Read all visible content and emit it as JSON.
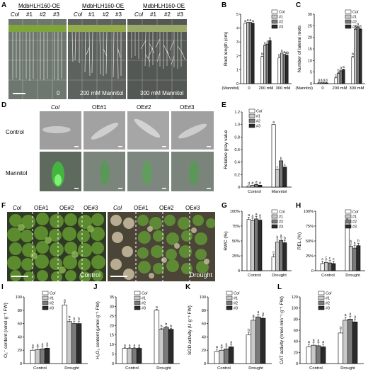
{
  "colors": {
    "col": "#ffffff",
    "oe1": "#c8c8c8",
    "oe2": "#7a7a7a",
    "oe3": "#2a2a2a"
  },
  "panel_letters": [
    "A",
    "B",
    "C",
    "D",
    "E",
    "F",
    "G",
    "H",
    "I",
    "J",
    "K",
    "L"
  ],
  "panelA": {
    "headers": [
      "MdbHLH160-OE",
      "MdbHLH160-OE",
      "MdbHLH160-OE"
    ],
    "lines": [
      "Col",
      "#1",
      "#2",
      "#3"
    ],
    "treatments": [
      "0",
      "200 mM Mannitol",
      "300 mM Mannitol"
    ]
  },
  "panelD": {
    "cols": [
      "Col",
      "OE#1",
      "OE#2",
      "OE#3"
    ],
    "rows": [
      "Control",
      "Mannitol"
    ]
  },
  "panelF": {
    "labels_left": [
      "Col",
      "OE#1",
      "OE#2",
      "OE#3"
    ],
    "labels_right": [
      "Col",
      "OE#1",
      "OE#2",
      "OE#3"
    ],
    "conditions": [
      "Control",
      "Drought"
    ]
  },
  "chart_data": [
    {
      "id": "B",
      "type": "bar",
      "ylabel": "Root length (cm)",
      "ylim": [
        0,
        5
      ],
      "yticks": [
        "0",
        "1",
        "2",
        "3",
        "4",
        "5"
      ],
      "xprefix": "(Mannitol)",
      "categories": [
        "0",
        "200 mM",
        "300 mM"
      ],
      "legend": [
        "Col",
        "#1",
        "#2",
        "#3"
      ],
      "series": [
        {
          "name": "Col",
          "values": [
            4.35,
            1.95,
            1.85
          ]
        },
        {
          "name": "#1",
          "values": [
            4.4,
            2.75,
            2.2
          ]
        },
        {
          "name": "#2",
          "values": [
            4.4,
            2.85,
            2.1
          ]
        },
        {
          "name": "#3",
          "values": [
            4.35,
            3.1,
            2.05
          ]
        }
      ],
      "letters": [
        [
          "a",
          "a",
          "a",
          "a"
        ],
        [
          "b",
          "a",
          "a",
          "a"
        ],
        [
          "b",
          "a",
          "a",
          "ab"
        ]
      ]
    },
    {
      "id": "C",
      "type": "bar",
      "ylabel": "Number of lateral roots",
      "ylim": [
        0,
        30
      ],
      "yticks": [
        "0",
        "5",
        "10",
        "15",
        "20",
        "25",
        "30"
      ],
      "xprefix": "(Mannitol)",
      "categories": [
        "0",
        "200 mM",
        "300 mM"
      ],
      "legend": [
        "Col",
        "#1",
        "#2",
        "#3"
      ],
      "series": [
        {
          "name": "Col",
          "values": [
            0.3,
            2.5,
            11.5
          ]
        },
        {
          "name": "#1",
          "values": [
            0.3,
            4.5,
            23.5
          ]
        },
        {
          "name": "#2",
          "values": [
            0.3,
            5.5,
            24.5
          ]
        },
        {
          "name": "#3",
          "values": [
            0.3,
            6,
            23.5
          ]
        }
      ],
      "letters": [
        [
          "a",
          "a",
          "a",
          "a"
        ],
        [
          "c",
          "b",
          "a",
          "a"
        ],
        [
          "b",
          "a",
          "a",
          "a"
        ]
      ]
    },
    {
      "id": "E",
      "type": "bar",
      "ylabel": "Relative gray value",
      "ylim": [
        0,
        1.2
      ],
      "yticks": [
        "0",
        "0.2",
        "0.4",
        "0.6",
        "0.8",
        "1.0",
        "1.2"
      ],
      "xprefix": "",
      "categories": [
        "Control",
        "Mannitol"
      ],
      "legend": [
        "Col",
        "#1",
        "#2",
        "#3"
      ],
      "series": [
        {
          "name": "Col",
          "values": [
            0.02,
            1.0
          ]
        },
        {
          "name": "#1",
          "values": [
            0.03,
            0.28
          ]
        },
        {
          "name": "#2",
          "values": [
            0.04,
            0.42
          ]
        },
        {
          "name": "#3",
          "values": [
            0.03,
            0.32
          ]
        }
      ],
      "letters": [
        [
          "d",
          "d",
          "d",
          "d"
        ],
        [
          "a",
          "c",
          "b",
          "c"
        ]
      ]
    },
    {
      "id": "G",
      "type": "bar",
      "ylabel": "RWC (%)",
      "ylim": [
        0,
        100
      ],
      "yticks": [
        "0",
        "25%",
        "50%",
        "75%",
        "100%"
      ],
      "xprefix": "",
      "categories": [
        "Control",
        "Drought"
      ],
      "legend": [
        "Col",
        "#1",
        "#2",
        "#3"
      ],
      "series": [
        {
          "name": "Col",
          "values": [
            86,
            23
          ]
        },
        {
          "name": "#1",
          "values": [
            84,
            48
          ]
        },
        {
          "name": "#2",
          "values": [
            87,
            51
          ]
        },
        {
          "name": "#3",
          "values": [
            85,
            47
          ]
        }
      ],
      "letters": [
        [
          "a",
          "a",
          "a",
          "a"
        ],
        [
          "c",
          "b",
          "a",
          "b"
        ]
      ]
    },
    {
      "id": "H",
      "type": "bar",
      "ylabel": "REL (%)",
      "ylim": [
        0,
        100
      ],
      "yticks": [
        "0",
        "25%",
        "50%",
        "75%",
        "100%"
      ],
      "xprefix": "",
      "categories": [
        "Control",
        "Drought"
      ],
      "legend": [
        "Col",
        "#1",
        "#2",
        "#3"
      ],
      "series": [
        {
          "name": "Col",
          "values": [
            12,
            80
          ]
        },
        {
          "name": "#1",
          "values": [
            14,
            41
          ]
        },
        {
          "name": "#2",
          "values": [
            13,
            38
          ]
        },
        {
          "name": "#3",
          "values": [
            12,
            42
          ]
        }
      ],
      "letters": [
        [
          "c",
          "c",
          "c",
          "c"
        ],
        [
          "a",
          "b",
          "b",
          "b"
        ]
      ]
    },
    {
      "id": "I",
      "type": "bar",
      "ylabel": "O₂⁻ content (nmol·g⁻¹ FW)",
      "ylim": [
        0,
        100
      ],
      "yticks": [
        "0",
        "20",
        "40",
        "60",
        "80",
        "100"
      ],
      "xprefix": "",
      "categories": [
        "Control",
        "Drought"
      ],
      "legend": [
        "Col",
        "#1",
        "#2",
        "#3"
      ],
      "series": [
        {
          "name": "Col",
          "values": [
            20,
            88
          ]
        },
        {
          "name": "#1",
          "values": [
            21,
            63
          ]
        },
        {
          "name": "#2",
          "values": [
            22,
            60
          ]
        },
        {
          "name": "#3",
          "values": [
            23,
            60
          ]
        }
      ],
      "letters": [
        [
          "a",
          "a",
          "a",
          "a"
        ],
        [
          "a",
          "b",
          "b",
          "b"
        ]
      ]
    },
    {
      "id": "J",
      "type": "bar",
      "ylabel": "H₂O₂ content (μmol·g⁻¹ FW)",
      "ylim": [
        0,
        35
      ],
      "yticks": [
        "0",
        "5",
        "10",
        "15",
        "20",
        "25",
        "30",
        "35"
      ],
      "xprefix": "",
      "categories": [
        "Control",
        "Drought"
      ],
      "legend": [
        "Col",
        "#1",
        "#2",
        "#3"
      ],
      "series": [
        {
          "name": "Col",
          "values": [
            8,
            28
          ]
        },
        {
          "name": "#1",
          "values": [
            8,
            18
          ]
        },
        {
          "name": "#2",
          "values": [
            8,
            19
          ]
        },
        {
          "name": "#3",
          "values": [
            8,
            18
          ]
        }
      ],
      "letters": [
        [
          "a",
          "a",
          "a",
          "a"
        ],
        [
          "a",
          "b",
          "b",
          "b"
        ]
      ]
    },
    {
      "id": "K",
      "type": "bar",
      "ylabel": "SOD activity (U·g⁻¹ FW)",
      "ylim": [
        0,
        100
      ],
      "yticks": [
        "0",
        "20",
        "40",
        "60",
        "80",
        "100"
      ],
      "xprefix": "",
      "categories": [
        "Control",
        "Drought"
      ],
      "legend": [
        "Col",
        "#1",
        "#2",
        "#3"
      ],
      "series": [
        {
          "name": "Col",
          "values": [
            18,
            43
          ]
        },
        {
          "name": "#1",
          "values": [
            20,
            65
          ]
        },
        {
          "name": "#2",
          "values": [
            22,
            70
          ]
        },
        {
          "name": "#3",
          "values": [
            25,
            68
          ]
        }
      ],
      "letters": [
        [
          "a",
          "a",
          "a",
          "a"
        ],
        [
          "b",
          "a",
          "a",
          "a"
        ]
      ]
    },
    {
      "id": "L",
      "type": "bar",
      "ylabel": "CAT activity (nmol·min⁻¹·g⁻¹ FW)",
      "ylim": [
        0,
        120
      ],
      "yticks": [
        "0",
        "20",
        "40",
        "60",
        "80",
        "100",
        "120"
      ],
      "xprefix": "",
      "categories": [
        "Control",
        "Drought"
      ],
      "legend": [
        "Col",
        "#1",
        "#2",
        "#3"
      ],
      "series": [
        {
          "name": "Col",
          "values": [
            30,
            55
          ]
        },
        {
          "name": "#1",
          "values": [
            33,
            78
          ]
        },
        {
          "name": "#2",
          "values": [
            32,
            80
          ]
        },
        {
          "name": "#3",
          "values": [
            30,
            75
          ]
        }
      ],
      "letters": [
        [
          "a",
          "a",
          "a",
          "a"
        ],
        [
          "b",
          "a",
          "a",
          "a"
        ]
      ]
    }
  ]
}
